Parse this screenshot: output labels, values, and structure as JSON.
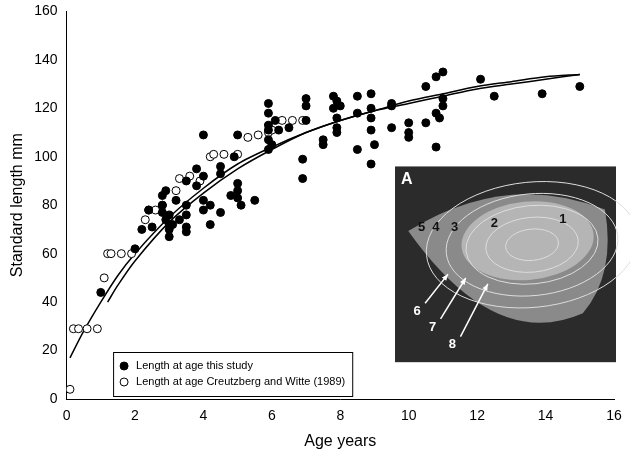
{
  "chart_data": {
    "type": "scatter",
    "x_label": "Age years",
    "y_label": "Standard length mm",
    "xlim": [
      0,
      16
    ],
    "xticks": [
      0,
      2,
      4,
      6,
      8,
      10,
      12,
      14,
      16
    ],
    "ylim": [
      0,
      160
    ],
    "yticks": [
      0,
      20,
      40,
      60,
      80,
      100,
      120,
      140,
      160
    ],
    "grid": false,
    "legend": "bottom left",
    "series": [
      {
        "name": "Length at age this study",
        "type": "scatter",
        "marker": "filled_circle",
        "color": "#000000",
        "x": [
          1.0,
          2.0,
          2.2,
          2.4,
          2.5,
          2.8,
          2.8,
          2.8,
          2.9,
          2.9,
          3.0,
          3.0,
          3.0,
          3.1,
          3.2,
          3.3,
          3.5,
          3.5,
          3.5,
          3.5,
          3.5,
          3.8,
          3.8,
          4.0,
          4.0,
          4.0,
          4.0,
          4.2,
          4.2,
          4.5,
          4.5,
          4.5,
          4.8,
          5.0,
          5.0,
          5.0,
          5.0,
          5.1,
          5.5,
          5.9,
          5.9,
          5.9,
          5.9,
          5.9,
          5.9,
          6.0,
          6.1,
          6.2,
          6.5,
          6.9,
          6.9,
          7.0,
          7.0,
          7.0,
          7.5,
          7.5,
          7.8,
          7.8,
          7.9,
          7.9,
          7.9,
          7.9,
          8.0,
          8.5,
          8.5,
          8.5,
          8.9,
          8.9,
          8.9,
          8.9,
          8.9,
          9.0,
          9.5,
          9.5,
          9.5,
          10.0,
          10.0,
          10.0,
          10.5,
          10.5,
          10.8,
          10.8,
          10.8,
          11.0,
          11.0,
          11.0,
          12.1,
          12.5,
          13.9,
          15.0,
          10.9,
          4.9,
          3.0
        ],
        "values": [
          44,
          62,
          70,
          78,
          71,
          84,
          80,
          77,
          86,
          74,
          70,
          67,
          76,
          72,
          82,
          74,
          71,
          69,
          76,
          80,
          90,
          95,
          88,
          82,
          78,
          92,
          109,
          72,
          80,
          96,
          93,
          77,
          84,
          83,
          86,
          89,
          109,
          80,
          82,
          122,
          118,
          113,
          111,
          107,
          103,
          105,
          115,
          111,
          112,
          91,
          99,
          115,
          121,
          124,
          107,
          105,
          120,
          125,
          123,
          116,
          112,
          110,
          121,
          125,
          118,
          103,
          126,
          120,
          116,
          111,
          97,
          105,
          122,
          121,
          112,
          114,
          110,
          108,
          114,
          129,
          133,
          118,
          104,
          135,
          124,
          121,
          132,
          125,
          126,
          129,
          116,
          100,
          72
        ]
      },
      {
        "name": "Length at age Creutzberg and Witte (1989)",
        "type": "scatter",
        "marker": "open_circle",
        "color": "#000000",
        "x": [
          0.1,
          0.2,
          0.35,
          0.6,
          0.9,
          1.1,
          1.2,
          1.3,
          1.6,
          1.9,
          2.3,
          2.4,
          2.6,
          2.8,
          3.2,
          3.3,
          3.6,
          3.9,
          4.2,
          4.3,
          4.6,
          5.0,
          5.3,
          5.6,
          5.9,
          6.0,
          6.3,
          6.6,
          6.9
        ],
        "values": [
          4,
          29,
          29,
          29,
          29,
          50,
          60,
          60,
          60,
          60,
          74,
          78,
          78,
          80,
          86,
          91,
          92,
          90,
          100,
          101,
          101,
          101,
          108,
          109,
          110,
          111,
          115,
          115,
          115
        ]
      },
      {
        "type": "line",
        "marker": "none",
        "line_style": "solid",
        "color": "#000000",
        "x": [
          0.1,
          0.5,
          1,
          1.5,
          2,
          3,
          4,
          5,
          6,
          7,
          8,
          9,
          10,
          11,
          12,
          13,
          14,
          15
        ],
        "values": [
          17,
          28,
          40,
          51,
          60,
          75,
          87,
          97,
          104,
          110,
          115,
          119,
          123,
          126,
          129,
          131,
          133,
          134
        ]
      },
      {
        "type": "line",
        "marker": "none",
        "line_style": "solid",
        "color": "#000000",
        "x": [
          1.2,
          1.5,
          2,
          3,
          4,
          5,
          6,
          7,
          8,
          9,
          10,
          11,
          12,
          13,
          14,
          15
        ],
        "values": [
          40,
          47,
          57,
          73,
          85,
          95,
          103,
          110,
          115,
          119,
          122,
          125,
          128,
          130,
          132,
          134
        ]
      }
    ],
    "inset": {
      "panel": "A",
      "ring_labels": [
        "1",
        "2",
        "3",
        "4",
        "5",
        "6",
        "7",
        "8"
      ]
    }
  }
}
